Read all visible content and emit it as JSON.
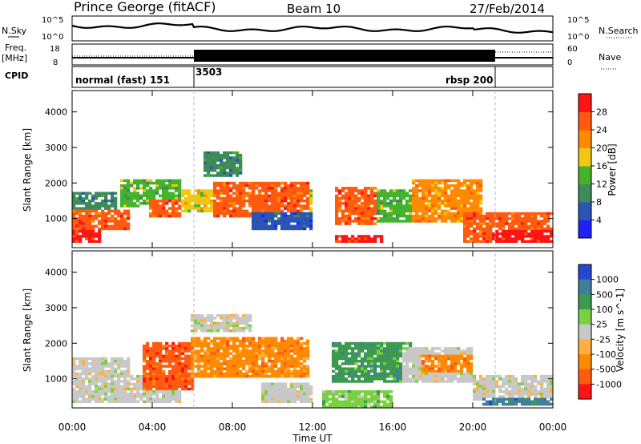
{
  "header": {
    "station": "Prince George (fitACF)",
    "beam": "Beam 10",
    "date": "27/Feb/2014"
  },
  "nsky_panel": {
    "left_label": "N.Sky",
    "left_ticks": [
      "10^5",
      "10^0"
    ],
    "right_label": "N.Search",
    "right_ticks": [
      "10^5",
      "10^0"
    ]
  },
  "freq_panel": {
    "left_label_line1": "Freq.",
    "left_label_line2": "[MHz]",
    "left_ticks": [
      "18",
      "8"
    ],
    "right_label": "Nave",
    "right_ticks": [
      "60",
      "0"
    ]
  },
  "cpid_panel": {
    "label": "CPID",
    "segments": [
      {
        "label": "normal (fast) 151",
        "start_h": 0,
        "end_h": 6.1
      },
      {
        "label": "3503",
        "start_h": 6.1,
        "end_h": 21.0
      },
      {
        "label": "rbsp 200",
        "start_h": 21.0,
        "end_h": 24
      }
    ]
  },
  "x_axis": {
    "label": "Time UT",
    "ticks": [
      "00:00",
      "04:00",
      "08:00",
      "12:00",
      "16:00",
      "20:00",
      "00:00"
    ]
  },
  "chart_data": [
    {
      "type": "heatmap",
      "title": "",
      "xlabel": "Time UT",
      "ylabel": "Slant Range [km]",
      "xlim": [
        0,
        24
      ],
      "ylim": [
        180,
        4600
      ],
      "y_ticks": [
        1000,
        2000,
        3000,
        4000
      ],
      "colorbar": {
        "label": "Power [dB]",
        "ticks": [
          "4",
          "8",
          "12",
          "16",
          "20",
          "24",
          "28"
        ],
        "colors": [
          "#1f1fff",
          "#2b54b4",
          "#3d8a5a",
          "#44b32c",
          "#f0c810",
          "#ff8a00",
          "#ff5a10",
          "#ff1414"
        ]
      },
      "regions": [
        {
          "t0": 0,
          "t1": 1.5,
          "r0": 330,
          "r1": 650,
          "level": 7
        },
        {
          "t0": 0,
          "t1": 2.8,
          "r0": 650,
          "r1": 1250,
          "level": 6
        },
        {
          "t0": 0,
          "t1": 2.2,
          "r0": 1250,
          "r1": 1750,
          "level": 2
        },
        {
          "t0": 2.4,
          "t1": 5.5,
          "r0": 1350,
          "r1": 2100,
          "level": 3
        },
        {
          "t0": 3.8,
          "t1": 5.5,
          "r0": 1000,
          "r1": 1500,
          "level": 6
        },
        {
          "t0": 5.4,
          "t1": 12,
          "r0": 1200,
          "r1": 1850,
          "level": 4
        },
        {
          "t0": 7,
          "t1": 11.8,
          "r0": 1000,
          "r1": 2000,
          "level": 6
        },
        {
          "t0": 6.5,
          "t1": 8.5,
          "r0": 2200,
          "r1": 2900,
          "level": 2
        },
        {
          "t0": 9,
          "t1": 12,
          "r0": 700,
          "r1": 1200,
          "level": 1
        },
        {
          "t0": 13.2,
          "t1": 15.5,
          "r0": 300,
          "r1": 550,
          "level": 7
        },
        {
          "t0": 13.2,
          "t1": 15.2,
          "r0": 800,
          "r1": 1900,
          "level": 6
        },
        {
          "t0": 15.2,
          "t1": 17,
          "r0": 900,
          "r1": 1800,
          "level": 3
        },
        {
          "t0": 17,
          "t1": 20.5,
          "r0": 900,
          "r1": 2100,
          "level": 5
        },
        {
          "t0": 19.5,
          "t1": 24,
          "r0": 300,
          "r1": 1200,
          "level": 6
        },
        {
          "t0": 21,
          "t1": 24,
          "r0": 300,
          "r1": 700,
          "level": 7
        }
      ]
    },
    {
      "type": "heatmap",
      "title": "",
      "xlabel": "Time UT",
      "ylabel": "Slant Range [km]",
      "xlim": [
        0,
        24
      ],
      "ylim": [
        180,
        4600
      ],
      "y_ticks": [
        1000,
        2000,
        3000,
        4000
      ],
      "colorbar": {
        "label": "Velocity [m s^-1]",
        "ticks": [
          "1000",
          "500",
          "100",
          "25",
          "-25",
          "-100",
          "-500",
          "-1000"
        ],
        "colors": [
          "#2747d2",
          "#3f7f9a",
          "#3c9a50",
          "#7ad040",
          "#c8c8c8",
          "#ffb040",
          "#ff8a00",
          "#ff5a10",
          "#ff1414"
        ]
      },
      "regions": [
        {
          "t0": 0,
          "t1": 2.8,
          "r0": 300,
          "r1": 1600,
          "level": 4
        },
        {
          "t0": 2.8,
          "t1": 5.5,
          "r0": 300,
          "r1": 1100,
          "level": 4
        },
        {
          "t0": 3.5,
          "t1": 6,
          "r0": 700,
          "r1": 2000,
          "level": 7
        },
        {
          "t0": 6,
          "t1": 11.8,
          "r0": 1000,
          "r1": 2200,
          "level": 6
        },
        {
          "t0": 6,
          "t1": 9,
          "r0": 2300,
          "r1": 2800,
          "level": 4
        },
        {
          "t0": 9.5,
          "t1": 12,
          "r0": 300,
          "r1": 900,
          "level": 4
        },
        {
          "t0": 12.5,
          "t1": 16,
          "r0": 200,
          "r1": 700,
          "level": 3
        },
        {
          "t0": 13,
          "t1": 17,
          "r0": 900,
          "r1": 2000,
          "level": 2
        },
        {
          "t0": 16.5,
          "t1": 20,
          "r0": 900,
          "r1": 1900,
          "level": 4
        },
        {
          "t0": 17.5,
          "t1": 20,
          "r0": 1200,
          "r1": 1700,
          "level": 6
        },
        {
          "t0": 20,
          "t1": 24,
          "r0": 400,
          "r1": 1100,
          "level": 4
        },
        {
          "t0": 20.5,
          "t1": 24,
          "r0": 250,
          "r1": 500,
          "level": 1
        }
      ]
    }
  ]
}
